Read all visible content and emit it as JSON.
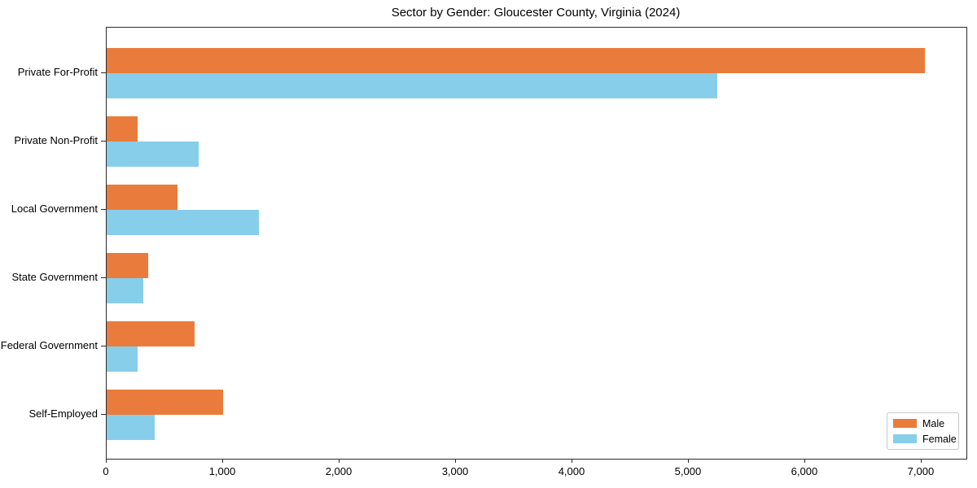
{
  "chart_data": {
    "type": "bar",
    "orientation": "horizontal",
    "title": "Sector by Gender: Gloucester County, Virginia (2024)",
    "categories": [
      "Private For-Profit",
      "Private Non-Profit",
      "Local Government",
      "State Government",
      "Federal Government",
      "Self-Employed"
    ],
    "series": [
      {
        "name": "Male",
        "color": "#E97C3C",
        "values": [
          7030,
          265,
          610,
          355,
          755,
          1000
        ]
      },
      {
        "name": "Female",
        "color": "#87CEEB",
        "values": [
          5245,
          790,
          1310,
          315,
          265,
          410
        ]
      }
    ],
    "xlabel": "",
    "ylabel": "",
    "xlim": [
      0,
      7385
    ],
    "xticks": [
      0,
      1000,
      2000,
      3000,
      4000,
      5000,
      6000,
      7000
    ],
    "xtick_labels": [
      "0",
      "1,000",
      "2,000",
      "3,000",
      "4,000",
      "5,000",
      "6,000",
      "7,000"
    ],
    "grid": false,
    "legend_position": "lower right"
  }
}
